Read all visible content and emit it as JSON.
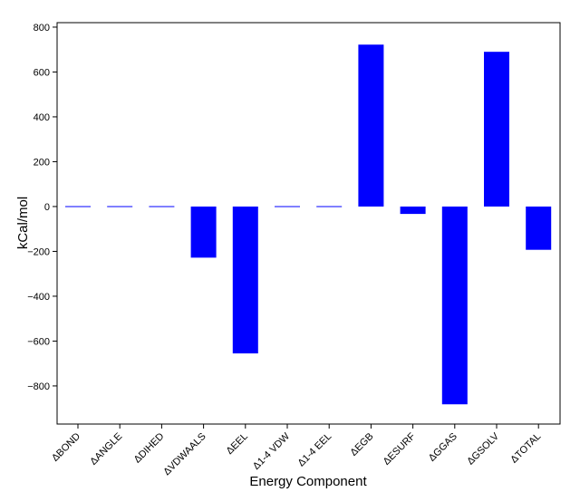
{
  "chart_data": {
    "type": "bar",
    "title": "",
    "xlabel": "Energy Component",
    "ylabel": "kCal/mol",
    "categories": [
      "ΔBOND",
      "ΔANGLE",
      "ΔDIHED",
      "ΔVDWAALS",
      "ΔEEL",
      "Δ1-4 VDW",
      "Δ1-4 EEL",
      "ΔEGB",
      "ΔESURF",
      "ΔGGAS",
      "ΔGSOLV",
      "ΔTOTAL"
    ],
    "values": [
      0,
      0,
      0,
      -228,
      -655,
      0,
      0,
      722,
      -33,
      -882,
      690,
      -193
    ],
    "ylim": [
      -970,
      820
    ],
    "yticks": [
      -800,
      -600,
      -400,
      -200,
      0,
      200,
      400,
      600,
      800
    ],
    "ytick_labels": [
      "−800",
      "−600",
      "−400",
      "−200",
      "0",
      "200",
      "400",
      "600",
      "800"
    ],
    "grid": false,
    "bar_color": "#0000ff"
  }
}
